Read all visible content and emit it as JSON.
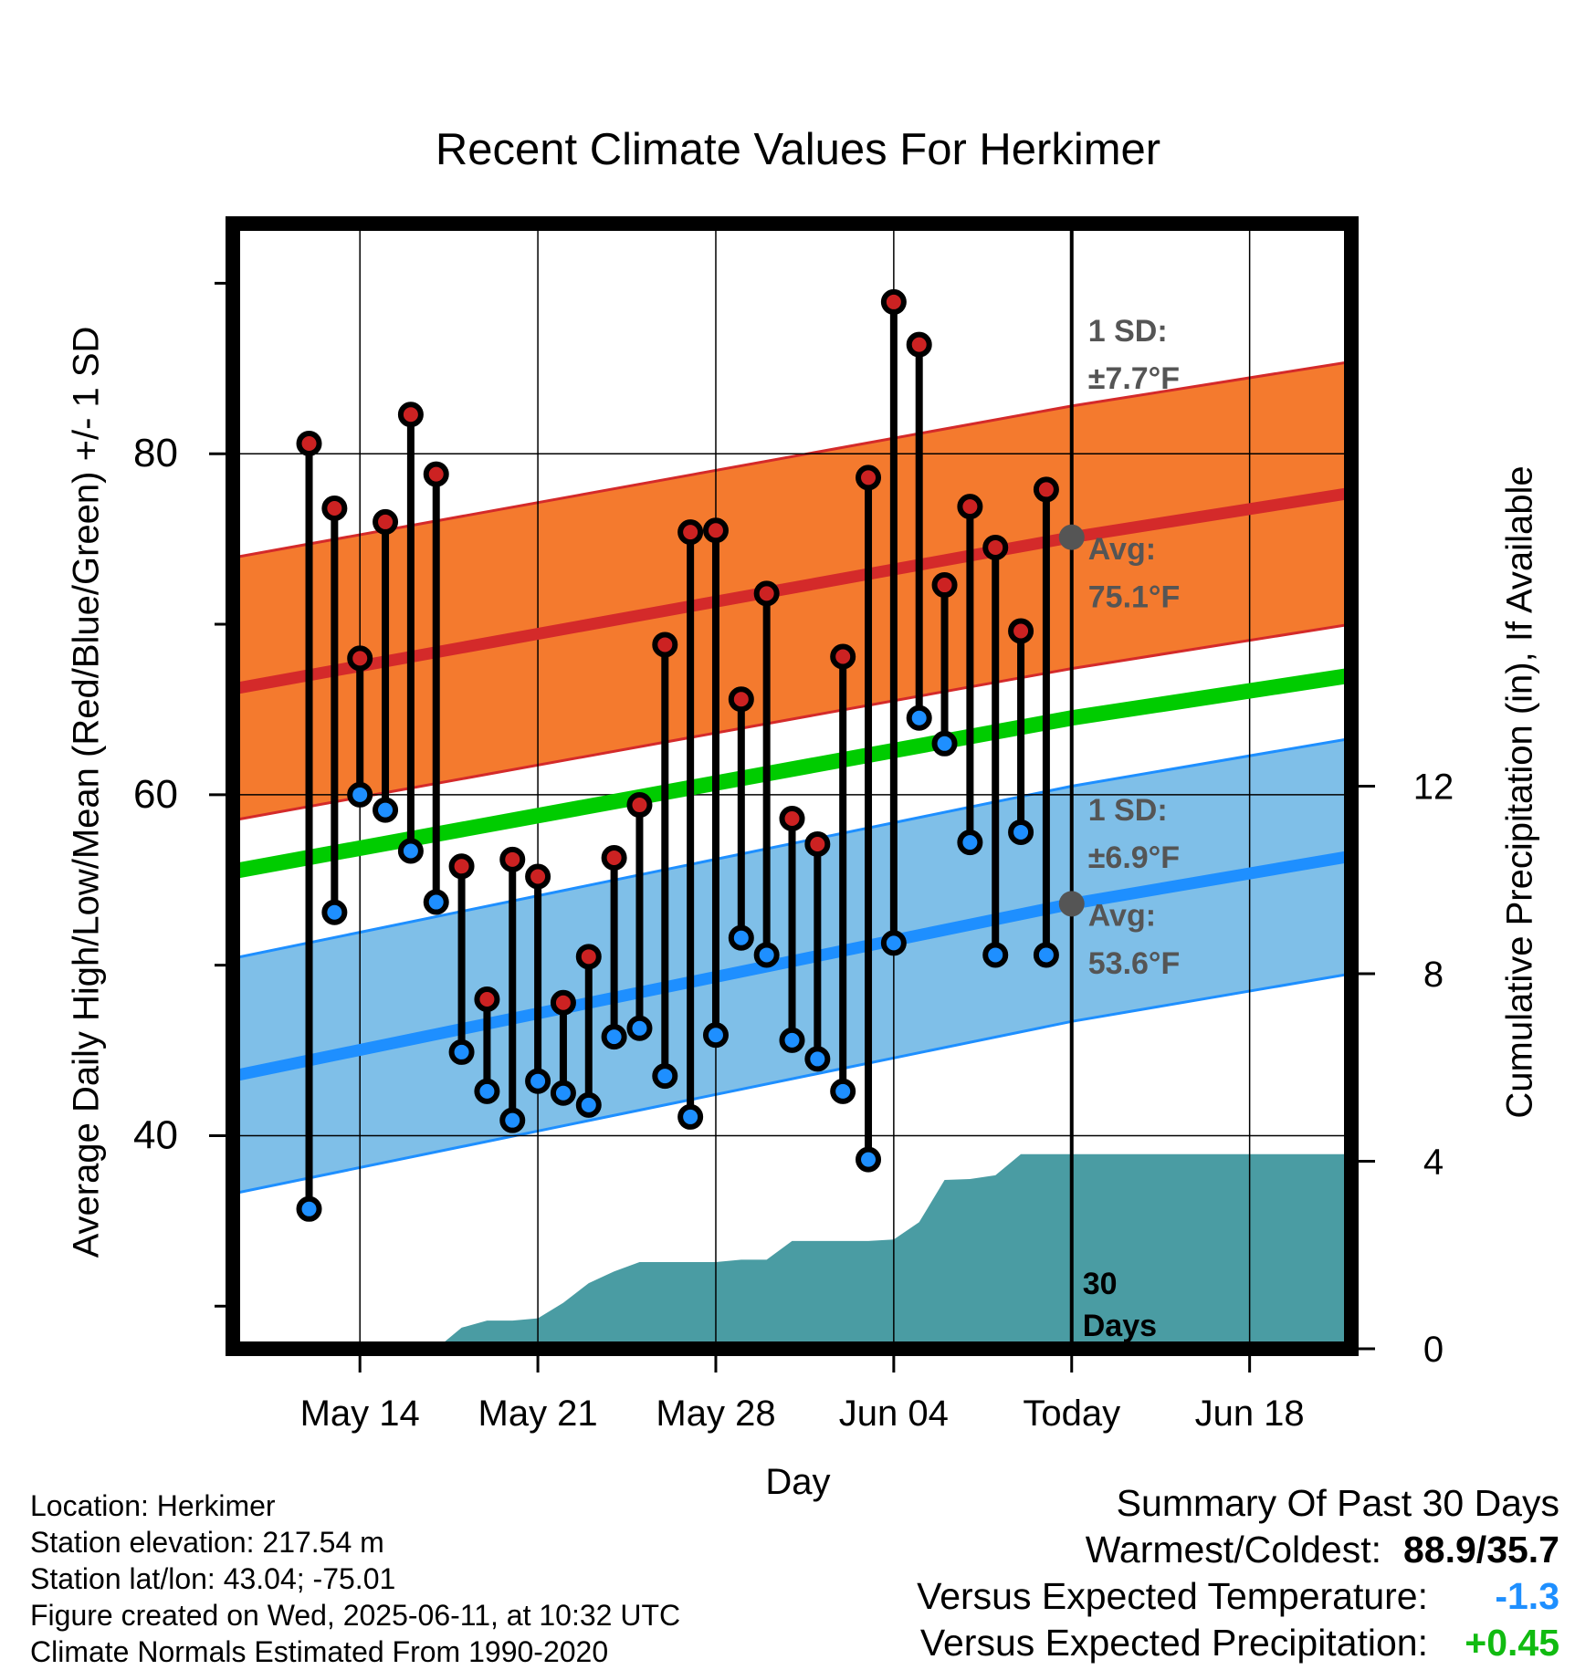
{
  "title": "Recent Climate Values For Herkimer",
  "ylabel_left": "Average Daily High/Low/Mean (Red/Blue/Green) +/- 1 SD",
  "ylabel_right": "Cumulative Precipitation (in), If Available",
  "xlabel": "Day",
  "colors": {
    "high_band": "#f47a2e",
    "high_line": "#d42a2a",
    "low_band": "#7fbfe8",
    "low_line": "#1e8fff",
    "mean_line": "#00cc00",
    "precip_fill": "#4a9ca3",
    "high_marker": "#cc2222",
    "low_marker": "#1e8fff",
    "warm_text": "#000000",
    "temp_dev": "#1e8fff",
    "precip_dev": "#11bb11",
    "annotation": "#555555"
  },
  "chart_data": {
    "type": "line",
    "x_axis": {
      "unit": "day",
      "range": [
        "2025-05-09",
        "2025-06-22"
      ],
      "ticks": [
        {
          "date": "2025-05-14",
          "label": "May 14"
        },
        {
          "date": "2025-05-21",
          "label": "May 21"
        },
        {
          "date": "2025-05-28",
          "label": "May 28"
        },
        {
          "date": "2025-06-04",
          "label": "Jun 04"
        },
        {
          "date": "2025-06-11",
          "label": "Today"
        },
        {
          "date": "2025-06-18",
          "label": "Jun 18"
        }
      ]
    },
    "y_left": {
      "range": [
        27.5,
        93.5
      ],
      "ticks": [
        40,
        60,
        80
      ],
      "minor_ticks": [
        30,
        50,
        70,
        90
      ]
    },
    "y_right": {
      "range": [
        0,
        24
      ],
      "ticks": [
        0,
        4,
        8,
        12
      ]
    },
    "grid": true,
    "series": [
      {
        "name": "High",
        "dates": [
          "2025-05-12",
          "2025-05-13",
          "2025-05-14",
          "2025-05-15",
          "2025-05-16",
          "2025-05-17",
          "2025-05-18",
          "2025-05-19",
          "2025-05-20",
          "2025-05-21",
          "2025-05-22",
          "2025-05-23",
          "2025-05-24",
          "2025-05-25",
          "2025-05-26",
          "2025-05-27",
          "2025-05-28",
          "2025-05-29",
          "2025-05-30",
          "2025-05-31",
          "2025-06-01",
          "2025-06-02",
          "2025-06-03",
          "2025-06-04",
          "2025-06-05",
          "2025-06-06",
          "2025-06-07",
          "2025-06-08",
          "2025-06-09",
          "2025-06-10"
        ],
        "values": [
          80.6,
          76.8,
          68.0,
          76.0,
          82.3,
          78.8,
          55.8,
          48.0,
          56.2,
          55.2,
          47.8,
          50.5,
          56.3,
          59.4,
          68.8,
          75.4,
          75.5,
          65.6,
          71.8,
          58.6,
          57.1,
          68.1,
          78.6,
          88.9,
          86.4,
          72.3,
          76.9,
          74.5,
          69.6,
          77.9
        ]
      },
      {
        "name": "Low",
        "dates": [
          "2025-05-12",
          "2025-05-13",
          "2025-05-14",
          "2025-05-15",
          "2025-05-16",
          "2025-05-17",
          "2025-05-18",
          "2025-05-19",
          "2025-05-20",
          "2025-05-21",
          "2025-05-22",
          "2025-05-23",
          "2025-05-24",
          "2025-05-25",
          "2025-05-26",
          "2025-05-27",
          "2025-05-28",
          "2025-05-29",
          "2025-05-30",
          "2025-05-31",
          "2025-06-01",
          "2025-06-02",
          "2025-06-03",
          "2025-06-04",
          "2025-06-05",
          "2025-06-06",
          "2025-06-07",
          "2025-06-08",
          "2025-06-09",
          "2025-06-10"
        ],
        "values": [
          35.7,
          53.1,
          60.0,
          59.1,
          56.7,
          53.7,
          44.9,
          42.6,
          40.9,
          43.2,
          42.5,
          41.8,
          45.8,
          46.3,
          43.5,
          41.1,
          45.9,
          51.6,
          50.6,
          45.6,
          44.5,
          42.6,
          38.6,
          51.3,
          64.5,
          63.0,
          57.2,
          50.6,
          57.8,
          50.6
        ]
      },
      {
        "name": "Normal High",
        "dates": [
          "2025-05-09",
          "2025-06-11",
          "2025-06-22"
        ],
        "values": [
          66.2,
          75.1,
          77.7
        ],
        "sd": 7.7
      },
      {
        "name": "Normal Low",
        "dates": [
          "2025-05-09",
          "2025-06-11",
          "2025-06-22"
        ],
        "values": [
          43.5,
          53.6,
          56.4
        ],
        "sd": 6.9
      },
      {
        "name": "Normal Mean",
        "dates": [
          "2025-05-09",
          "2025-06-11",
          "2025-06-22"
        ],
        "values": [
          55.5,
          64.5,
          67.0
        ]
      },
      {
        "name": "Cumulative Precipitation",
        "axis": "right",
        "dates": [
          "2025-05-09",
          "2025-05-14",
          "2025-05-15",
          "2025-05-16",
          "2025-05-17",
          "2025-05-18",
          "2025-05-19",
          "2025-05-20",
          "2025-05-21",
          "2025-05-22",
          "2025-05-23",
          "2025-05-24",
          "2025-05-25",
          "2025-05-26",
          "2025-05-27",
          "2025-05-28",
          "2025-05-29",
          "2025-05-30",
          "2025-05-31",
          "2025-06-01",
          "2025-06-02",
          "2025-06-03",
          "2025-06-04",
          "2025-06-05",
          "2025-06-06",
          "2025-06-07",
          "2025-06-08",
          "2025-06-09",
          "2025-06-10",
          "2025-06-22"
        ],
        "values": [
          0,
          0,
          0,
          0,
          0,
          0.45,
          0.6,
          0.6,
          0.65,
          0.98,
          1.4,
          1.65,
          1.85,
          1.85,
          1.85,
          1.85,
          1.9,
          1.9,
          2.3,
          2.3,
          2.3,
          2.3,
          2.33,
          2.7,
          3.6,
          3.62,
          3.7,
          4.15,
          4.15,
          4.15
        ]
      }
    ],
    "annotations": {
      "high_sd": {
        "label": "1 SD:",
        "value": "±7.7°F"
      },
      "high_avg": {
        "label": "Avg:",
        "value": "75.1°F"
      },
      "low_sd": {
        "label": "1 SD:",
        "value": "±6.9°F"
      },
      "low_avg": {
        "label": "Avg:",
        "value": "53.6°F"
      },
      "window": {
        "line1": "30",
        "line2": "Days"
      }
    }
  },
  "info": {
    "location": "Location: Herkimer",
    "elevation": "Station elevation: 217.54 m",
    "latlon": "Station lat/lon: 43.04; -75.01",
    "created": "Figure created on Wed, 2025-06-11, at 10:32 UTC",
    "normals": "Climate Normals Estimated From 1990-2020"
  },
  "summary": {
    "title": "Summary Of Past 30 Days",
    "warmest_label": "Warmest/Coldest:",
    "warmest_value": "88.9/35.7",
    "temp_label": "Versus Expected Temperature:",
    "temp_value": "-1.3",
    "precip_label": "Versus Expected Precipitation:",
    "precip_value": "+0.45"
  }
}
